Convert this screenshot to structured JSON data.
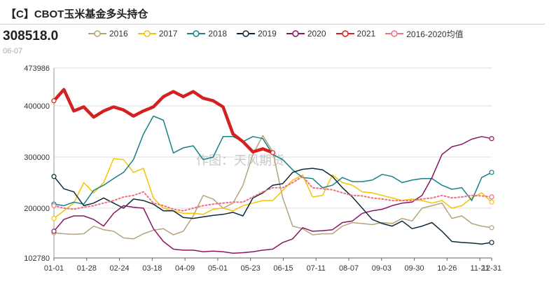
{
  "header": {
    "title": "【C】CBOT玉米基金多头持仓",
    "value": "308518.0",
    "date": "06-07"
  },
  "watermark": "作图：天风期货",
  "chart_data": {
    "type": "line",
    "title": "【C】CBOT玉米基金多头持仓",
    "ylim": [
      102780,
      473986
    ],
    "y_ticks": [
      "473986",
      "400000",
      "300000",
      "200000",
      "102780"
    ],
    "y_tick_values": [
      473986,
      400000,
      300000,
      200000,
      102780
    ],
    "x_ticks": [
      "01-01",
      "01-28",
      "02-24",
      "03-18",
      "04-09",
      "05-01",
      "05-23",
      "06-15",
      "07-11",
      "08-07",
      "09-03",
      "09-30",
      "10-26",
      "11-21",
      "12-31"
    ],
    "grid": "horizontal",
    "legend_position": "top",
    "series": [
      {
        "name": "2016",
        "color": "#b5a47a",
        "width": 1.5,
        "dashed": false,
        "values": [
          152000,
          150000,
          149000,
          150000,
          165000,
          158000,
          155000,
          142000,
          140000,
          150000,
          157000,
          160000,
          148000,
          155000,
          185000,
          225000,
          218000,
          200000,
          210000,
          245000,
          305000,
          342000,
          310000,
          220000,
          165000,
          160000,
          148000,
          150000,
          150000,
          165000,
          172000,
          170000,
          168000,
          172000,
          170000,
          180000,
          175000,
          200000,
          205000,
          210000,
          180000,
          185000,
          170000,
          165000,
          162000
        ]
      },
      {
        "name": "2017",
        "color": "#f5c400",
        "width": 1.5,
        "dashed": false,
        "values": [
          180000,
          195000,
          210000,
          250000,
          230000,
          250000,
          297000,
          295000,
          270000,
          278000,
          220000,
          200000,
          195000,
          190000,
          190000,
          188000,
          198000,
          200000,
          195000,
          205000,
          210000,
          215000,
          215000,
          235000,
          255000,
          265000,
          222000,
          225000,
          265000,
          250000,
          245000,
          232000,
          230000,
          225000,
          220000,
          215000,
          218000,
          215000,
          210000,
          215000,
          200000,
          205000,
          220000,
          230000,
          212000
        ]
      },
      {
        "name": "2018",
        "color": "#17818a",
        "width": 1.5,
        "dashed": false,
        "values": [
          208000,
          205000,
          212000,
          208000,
          235000,
          245000,
          258000,
          270000,
          295000,
          345000,
          380000,
          372000,
          308000,
          318000,
          322000,
          295000,
          300000,
          340000,
          340000,
          330000,
          340000,
          336000,
          305000,
          295000,
          275000,
          260000,
          258000,
          240000,
          245000,
          260000,
          252000,
          252000,
          255000,
          266000,
          262000,
          250000,
          255000,
          258000,
          258000,
          245000,
          237000,
          240000,
          215000,
          260000,
          270000
        ]
      },
      {
        "name": "2019",
        "color": "#0e2a3a",
        "width": 1.5,
        "dashed": false,
        "values": [
          262000,
          238000,
          232000,
          205000,
          210000,
          220000,
          210000,
          200000,
          218000,
          215000,
          208000,
          195000,
          195000,
          182000,
          180000,
          183000,
          186000,
          188000,
          192000,
          185000,
          220000,
          230000,
          245000,
          248000,
          270000,
          276000,
          278000,
          275000,
          262000,
          240000,
          222000,
          200000,
          178000,
          170000,
          165000,
          175000,
          160000,
          165000,
          172000,
          155000,
          135000,
          133000,
          132000,
          130000,
          133000
        ]
      },
      {
        "name": "2020",
        "color": "#8a1560",
        "width": 1.5,
        "dashed": false,
        "values": [
          155000,
          178000,
          185000,
          185000,
          178000,
          165000,
          190000,
          205000,
          202000,
          200000,
          160000,
          135000,
          120000,
          118000,
          118000,
          115000,
          116000,
          115000,
          112000,
          113000,
          115000,
          118000,
          120000,
          133000,
          140000,
          162000,
          155000,
          156000,
          158000,
          172000,
          175000,
          190000,
          195000,
          198000,
          205000,
          210000,
          212000,
          225000,
          260000,
          305000,
          320000,
          325000,
          335000,
          340000,
          336000
        ]
      },
      {
        "name": "2021",
        "color": "#d42020",
        "width": 4.5,
        "dashed": false,
        "values": [
          410000,
          432000,
          390000,
          398000,
          378000,
          390000,
          398000,
          392000,
          380000,
          390000,
          398000,
          418000,
          428000,
          418000,
          428000,
          415000,
          410000,
          398000,
          345000,
          330000,
          310000,
          316000,
          308518,
          null,
          null,
          null,
          null,
          null,
          null,
          null,
          null,
          null,
          null,
          null,
          null,
          null,
          null,
          null,
          null,
          null,
          null,
          null,
          null,
          null,
          null
        ]
      },
      {
        "name": "2016-2020均值",
        "color": "#f07080",
        "width": 2,
        "dashed": true,
        "values": [
          205000,
          200000,
          198000,
          202000,
          205000,
          210000,
          215000,
          222000,
          225000,
          232000,
          210000,
          205000,
          198000,
          195000,
          200000,
          205000,
          208000,
          210000,
          212000,
          212000,
          222000,
          232000,
          240000,
          240000,
          250000,
          262000,
          240000,
          238000,
          236000,
          230000,
          225000,
          224000,
          220000,
          218000,
          215000,
          215000,
          215000,
          218000,
          220000,
          225000,
          220000,
          222000,
          225000,
          224000,
          222000
        ]
      }
    ]
  }
}
